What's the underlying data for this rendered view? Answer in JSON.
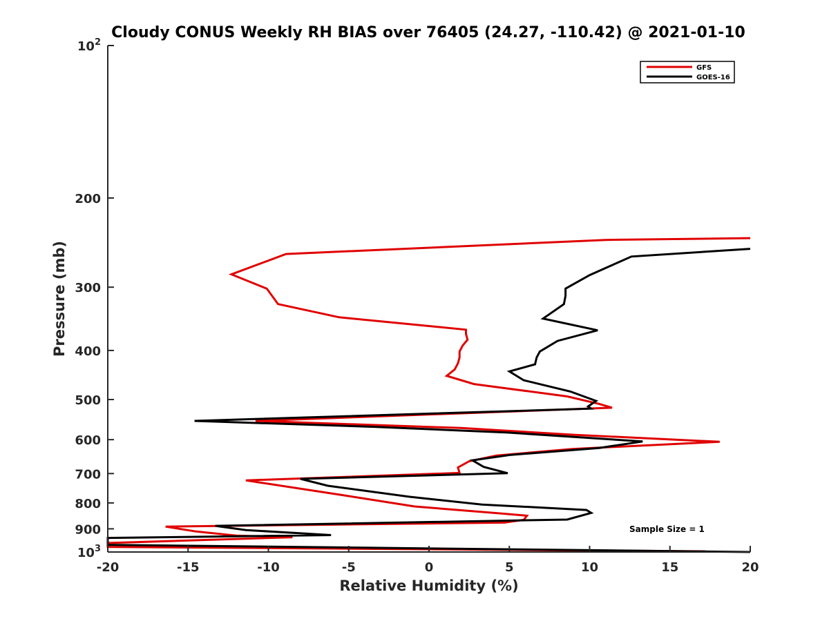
{
  "chart_data": {
    "type": "line",
    "title": "Cloudy CONUS Weekly RH BIAS over 76405 (24.27, -110.42) @ 2021-01-10",
    "xlabel": "Relative Humidity (%)",
    "ylabel": "Pressure (mb)",
    "xlim": [
      -20,
      20
    ],
    "ylim": [
      100,
      1000
    ],
    "yscale": "log",
    "y_reversed": true,
    "grid": false,
    "legend_position": "top-right",
    "x_ticks": [
      "-20",
      "-15",
      "-10",
      "-5",
      "0",
      "5",
      "10",
      "15",
      "20"
    ],
    "x_tick_values": [
      -20,
      -15,
      -10,
      -5,
      0,
      5,
      10,
      15,
      20
    ],
    "y_ticks": [
      {
        "value": 200,
        "label": "200"
      },
      {
        "value": 300,
        "label": "300"
      },
      {
        "value": 400,
        "label": "400"
      },
      {
        "value": 500,
        "label": "500"
      },
      {
        "value": 600,
        "label": "600"
      },
      {
        "value": 700,
        "label": "700"
      },
      {
        "value": 800,
        "label": "800"
      },
      {
        "value": 900,
        "label": "900"
      }
    ],
    "y_power_ticks": [
      {
        "value": 100,
        "base": "10",
        "exp": "2"
      },
      {
        "value": 1000,
        "base": "10",
        "exp": "3"
      }
    ],
    "annotation": "Sample Size = 1",
    "series": [
      {
        "name": "GFS",
        "color": "#e00000",
        "points": [
          [
            20,
            240
          ],
          [
            11.0,
            242
          ],
          [
            -8.9,
            258
          ],
          [
            -12.3,
            283
          ],
          [
            -10.1,
            302
          ],
          [
            -9.4,
            324
          ],
          [
            -5.6,
            344
          ],
          [
            2.3,
            364
          ],
          [
            2.3,
            371
          ],
          [
            2.4,
            381
          ],
          [
            2.1,
            391
          ],
          [
            1.9,
            402
          ],
          [
            1.9,
            413
          ],
          [
            1.8,
            424
          ],
          [
            1.6,
            436
          ],
          [
            1.1,
            449
          ],
          [
            2.8,
            466
          ],
          [
            8.6,
            493
          ],
          [
            10.6,
            510
          ],
          [
            11.4,
            519
          ],
          [
            -10.8,
            551
          ],
          [
            2.0,
            569
          ],
          [
            9.1,
            587
          ],
          [
            18.1,
            606
          ],
          [
            8.9,
            626
          ],
          [
            4.2,
            645
          ],
          [
            2.5,
            662
          ],
          [
            1.8,
            681
          ],
          [
            1.9,
            698
          ],
          [
            -11.4,
            722
          ],
          [
            -5.4,
            772
          ],
          [
            -0.9,
            813
          ],
          [
            4.4,
            839
          ],
          [
            6.1,
            848
          ],
          [
            5.9,
            864
          ],
          [
            4.7,
            875
          ],
          [
            -16.4,
            891
          ],
          [
            -14.5,
            911
          ],
          [
            -12.0,
            928
          ],
          [
            -8.5,
            935
          ],
          [
            -20,
            960
          ],
          [
            -20,
            977
          ],
          [
            17.2,
            997
          ]
        ]
      },
      {
        "name": "GOES-16",
        "color": "#000000",
        "points": [
          [
            20,
            252
          ],
          [
            12.6,
            261
          ],
          [
            10.0,
            284
          ],
          [
            8.5,
            302
          ],
          [
            8.5,
            312
          ],
          [
            8.4,
            324
          ],
          [
            7.1,
            346
          ],
          [
            10.5,
            365
          ],
          [
            8.0,
            383
          ],
          [
            6.9,
            402
          ],
          [
            6.7,
            413
          ],
          [
            6.6,
            426
          ],
          [
            5.0,
            440
          ],
          [
            5.9,
            458
          ],
          [
            8.8,
            482
          ],
          [
            10.4,
            503
          ],
          [
            9.9,
            516
          ],
          [
            10.1,
            521
          ],
          [
            -14.6,
            551
          ],
          [
            -3.4,
            566
          ],
          [
            4.9,
            581
          ],
          [
            13.3,
            605
          ],
          [
            10.6,
            623
          ],
          [
            5.1,
            643
          ],
          [
            2.7,
            659
          ],
          [
            3.4,
            679
          ],
          [
            4.9,
            699
          ],
          [
            -8.0,
            717
          ],
          [
            -6.3,
            740
          ],
          [
            -1.2,
            778
          ],
          [
            3.3,
            806
          ],
          [
            9.8,
            826
          ],
          [
            10.1,
            837
          ],
          [
            8.6,
            863
          ],
          [
            -13.3,
            888
          ],
          [
            -11.4,
            905
          ],
          [
            -6.1,
            926
          ],
          [
            -20,
            938
          ],
          [
            -20,
            955
          ],
          [
            -20,
            968
          ],
          [
            20,
            1000
          ]
        ]
      }
    ]
  }
}
